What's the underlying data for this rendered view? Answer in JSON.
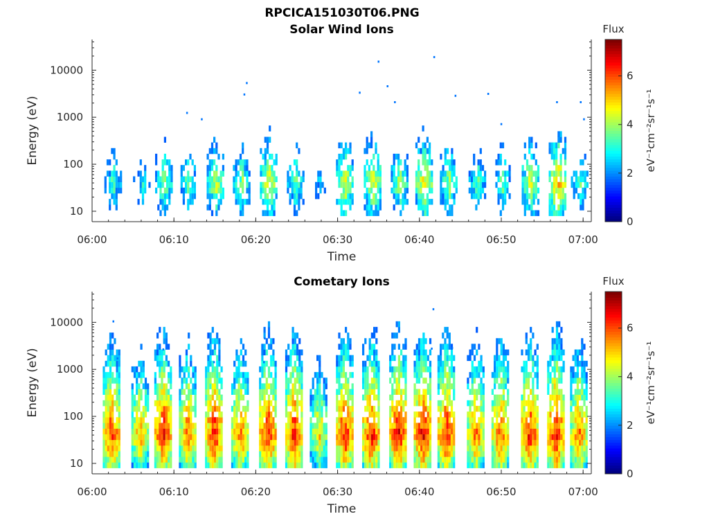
{
  "figure": {
    "title": "RPCICA151030T06.PNG"
  },
  "chart_data": [
    {
      "type": "heatmap",
      "title": "Solar Wind Ions",
      "xlabel": "Time",
      "ylabel": "Energy (eV)",
      "xlim": [
        "06:00",
        "07:01"
      ],
      "xticks": [
        "06:00",
        "06:10",
        "06:20",
        "06:30",
        "06:40",
        "06:50",
        "07:00"
      ],
      "yscale": "log",
      "ylim": [
        6,
        45000
      ],
      "yticks": [
        "10",
        "100",
        "1000",
        "10000"
      ],
      "colorbar": {
        "label": "Flux",
        "unit": "eV⁻¹cm⁻²sr⁻¹s⁻¹",
        "range": [
          0,
          7.5
        ],
        "ticks": [
          "0",
          "2",
          "4",
          "6"
        ]
      },
      "bursts": [
        {
          "t": 2.5,
          "core": 3.5
        },
        {
          "t": 6.0,
          "core": 3.0
        },
        {
          "t": 8.7,
          "core": 4.0
        },
        {
          "t": 11.8,
          "core": 3.8
        },
        {
          "t": 15.0,
          "core": 4.5
        },
        {
          "t": 18.2,
          "core": 4.0
        },
        {
          "t": 21.5,
          "core": 4.8
        },
        {
          "t": 24.8,
          "core": 3.8
        },
        {
          "t": 27.7,
          "core": 2.6
        },
        {
          "t": 30.8,
          "core": 4.8
        },
        {
          "t": 34.2,
          "core": 4.8
        },
        {
          "t": 37.5,
          "core": 4.2
        },
        {
          "t": 40.5,
          "core": 5.0
        },
        {
          "t": 43.5,
          "core": 4.2
        },
        {
          "t": 47.0,
          "core": 3.6
        },
        {
          "t": 50.0,
          "core": 3.8
        },
        {
          "t": 53.5,
          "core": 4.6
        },
        {
          "t": 56.8,
          "core": 5.4
        },
        {
          "t": 59.5,
          "core": 3.6
        }
      ],
      "outliers": [
        {
          "t": 11.5,
          "e": 1300
        },
        {
          "t": 13.3,
          "e": 950
        },
        {
          "t": 18.5,
          "e": 3200
        },
        {
          "t": 18.8,
          "e": 5600
        },
        {
          "t": 32.6,
          "e": 3500
        },
        {
          "t": 34.9,
          "e": 16000
        },
        {
          "t": 36.0,
          "e": 4800
        },
        {
          "t": 36.9,
          "e": 2200
        },
        {
          "t": 41.7,
          "e": 20000
        },
        {
          "t": 44.3,
          "e": 3000
        },
        {
          "t": 48.3,
          "e": 3300
        },
        {
          "t": 49.9,
          "e": 750
        },
        {
          "t": 56.7,
          "e": 2200
        },
        {
          "t": 59.6,
          "e": 2200
        },
        {
          "t": 60.0,
          "e": 950
        }
      ]
    },
    {
      "type": "heatmap",
      "title": "Cometary Ions",
      "xlabel": "Time",
      "ylabel": "Energy (eV)",
      "xlim": [
        "06:00",
        "07:01"
      ],
      "xticks": [
        "06:00",
        "06:10",
        "06:20",
        "06:30",
        "06:40",
        "06:50",
        "07:00"
      ],
      "yscale": "log",
      "ylim": [
        6,
        45000
      ],
      "yticks": [
        "10",
        "100",
        "1000",
        "10000"
      ],
      "colorbar": {
        "label": "Flux",
        "unit": "eV⁻¹cm⁻²sr⁻¹s⁻¹",
        "range": [
          0,
          7.5
        ],
        "ticks": [
          "0",
          "2",
          "4",
          "6"
        ]
      },
      "bursts": [
        {
          "t": 2.3,
          "core": 6.4
        },
        {
          "t": 5.8,
          "core": 5.6
        },
        {
          "t": 8.6,
          "core": 6.6
        },
        {
          "t": 11.6,
          "core": 6.0
        },
        {
          "t": 14.8,
          "core": 6.6
        },
        {
          "t": 18.0,
          "core": 6.0
        },
        {
          "t": 21.4,
          "core": 6.6
        },
        {
          "t": 24.6,
          "core": 6.6
        },
        {
          "t": 27.6,
          "core": 5.2
        },
        {
          "t": 30.8,
          "core": 6.6
        },
        {
          "t": 34.0,
          "core": 6.6
        },
        {
          "t": 37.3,
          "core": 6.8
        },
        {
          "t": 40.3,
          "core": 6.8
        },
        {
          "t": 43.2,
          "core": 6.6
        },
        {
          "t": 46.8,
          "core": 6.0
        },
        {
          "t": 49.8,
          "core": 6.2
        },
        {
          "t": 53.4,
          "core": 6.6
        },
        {
          "t": 56.6,
          "core": 6.8
        },
        {
          "t": 59.4,
          "core": 6.0
        }
      ],
      "outliers": [
        {
          "t": 2.5,
          "e": 11000
        },
        {
          "t": 3.0,
          "e": 1800
        },
        {
          "t": 8.6,
          "e": 2800
        },
        {
          "t": 14.8,
          "e": 1500
        },
        {
          "t": 21.0,
          "e": 4800
        },
        {
          "t": 20.9,
          "e": 1500
        },
        {
          "t": 34.4,
          "e": 2400
        },
        {
          "t": 41.6,
          "e": 20000
        },
        {
          "t": 41.4,
          "e": 2900
        },
        {
          "t": 43.9,
          "e": 3000
        }
      ]
    }
  ]
}
